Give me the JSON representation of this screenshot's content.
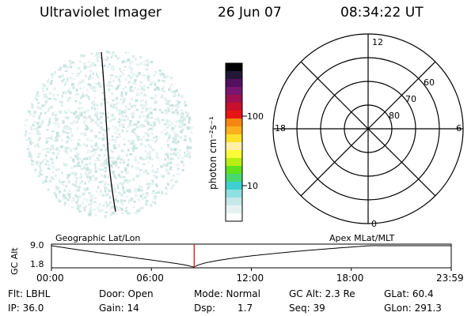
{
  "header": {
    "title": "Ultraviolet Imager",
    "date": "26 Jun 07",
    "time": "08:34:22 UT"
  },
  "colorbar": {
    "label": "photon cm⁻²s⁻¹",
    "ticks": [
      "100",
      "10"
    ],
    "colors": [
      "#ffffff",
      "#e6f2f2",
      "#c8e8e8",
      "#8fe0e0",
      "#3ecfcf",
      "#48d96e",
      "#5ee21c",
      "#b6ef12",
      "#fbfb38",
      "#fdf0a4",
      "#fce02a",
      "#fbb01c",
      "#f58612",
      "#e81414",
      "#c8102a",
      "#a01050",
      "#781670",
      "#52105e",
      "#241838",
      "#000000"
    ]
  },
  "polar_plot": {
    "clock_labels": [
      "12",
      "18",
      "6",
      "0"
    ],
    "lat_labels": [
      "60",
      "70",
      "80"
    ]
  },
  "timeline": {
    "ylabel": "GC Alt",
    "ymax": "9.0",
    "ymin": "1.8",
    "left_label": "Geographic Lat/Lon",
    "right_label": "Apex MLat/MLT",
    "xticks": [
      "00:00",
      "06:00",
      "12:00",
      "18:00",
      "23:59"
    ],
    "current_time_fraction": 0.357
  },
  "info": {
    "flt": "Flt: LBHL",
    "door": "Door: Open",
    "mode": "Mode: Normal",
    "gcalt": "GC Alt: 2.3 Re",
    "glat": "GLat:  60.4",
    "ip": "IP: 36.0",
    "gain": "Gain: 14",
    "dsp_label": "Dsp:",
    "dsp_value": "1.7",
    "seq": "Seq: 39",
    "glon": "GLon: 291.3"
  }
}
